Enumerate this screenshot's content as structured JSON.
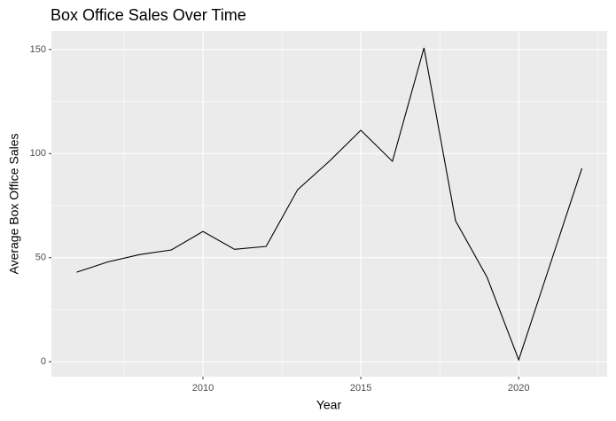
{
  "chart_data": {
    "type": "line",
    "title": "Box Office Sales Over Time",
    "x_label": "Year",
    "y_label": "Average Box Office Sales",
    "x": [
      2006,
      2007,
      2008,
      2009,
      2010,
      2011,
      2012,
      2013,
      2014,
      2015,
      2016,
      2017,
      2018,
      2019,
      2020,
      2021,
      2022
    ],
    "series": [
      {
        "name": "Average Box Office Sales",
        "color": "#000000",
        "values": [
          43,
          48,
          51.5,
          53.7,
          62.6,
          54,
          55.4,
          82.7,
          96.3,
          111.2,
          96.3,
          150.8,
          67.7,
          40.5,
          0.9,
          47,
          92.9
        ]
      }
    ],
    "xlim": [
      2005.2,
      2022.8
    ],
    "ylim": [
      -7.2,
      158.9
    ],
    "xticks": [
      2010,
      2015,
      2020
    ],
    "yticks": [
      0,
      50,
      100,
      150
    ],
    "grid": true
  }
}
